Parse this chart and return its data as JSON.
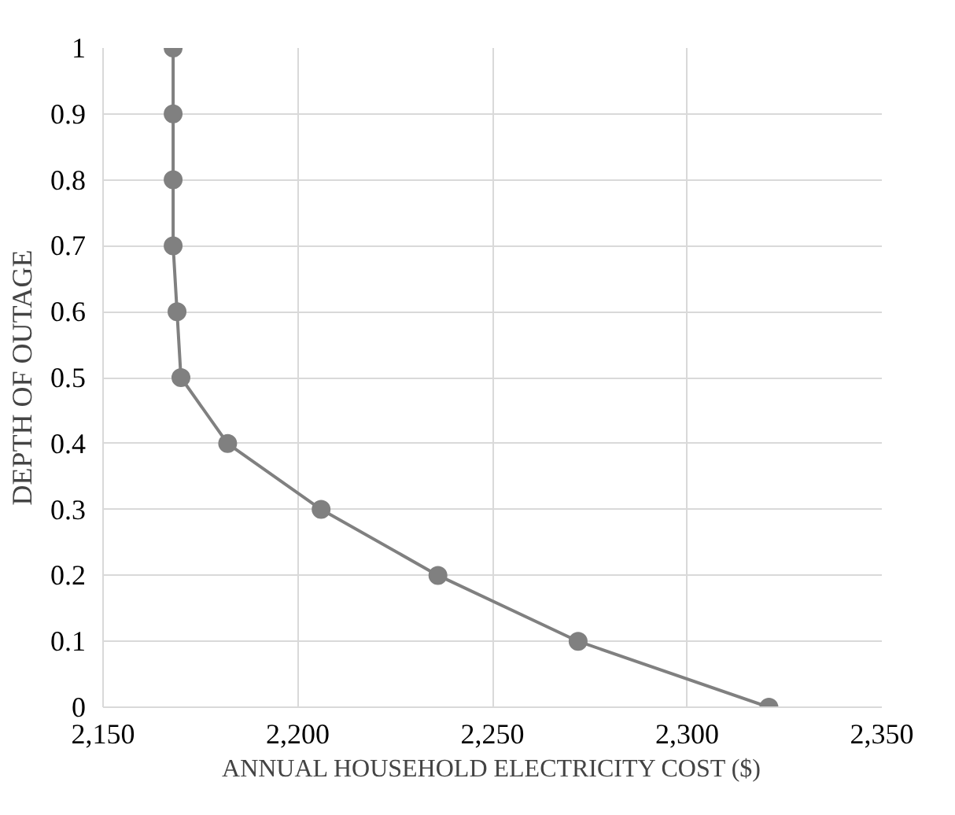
{
  "chart_data": {
    "type": "line",
    "xlabel": "ANNUAL HOUSEHOLD ELECTRICITY COST ($)",
    "ylabel": "DEPTH OF OUTAGE",
    "x": [
      2321,
      2272,
      2236,
      2206,
      2182,
      2170,
      2169,
      2168,
      2168,
      2168,
      2168
    ],
    "series": [
      {
        "color": "#808080",
        "values": [
          0,
          0.1,
          0.2,
          0.3,
          0.4,
          0.5,
          0.6,
          0.7,
          0.8,
          0.9,
          1
        ]
      }
    ],
    "xlim": [
      2150,
      2350
    ],
    "xticks": [
      {
        "value": 2150,
        "label": "2,150"
      },
      {
        "value": 2200,
        "label": "2,200"
      },
      {
        "value": 2250,
        "label": "2,250"
      },
      {
        "value": 2300,
        "label": "2,300"
      },
      {
        "value": 2350,
        "label": "2,350"
      }
    ],
    "ylim": [
      0,
      1
    ],
    "yticks": [
      0,
      0.1,
      0.2,
      0.3,
      0.4,
      0.5,
      0.6,
      0.7,
      0.8,
      0.9,
      1
    ],
    "grid": true,
    "marker": "circle",
    "line_style": "solid"
  }
}
